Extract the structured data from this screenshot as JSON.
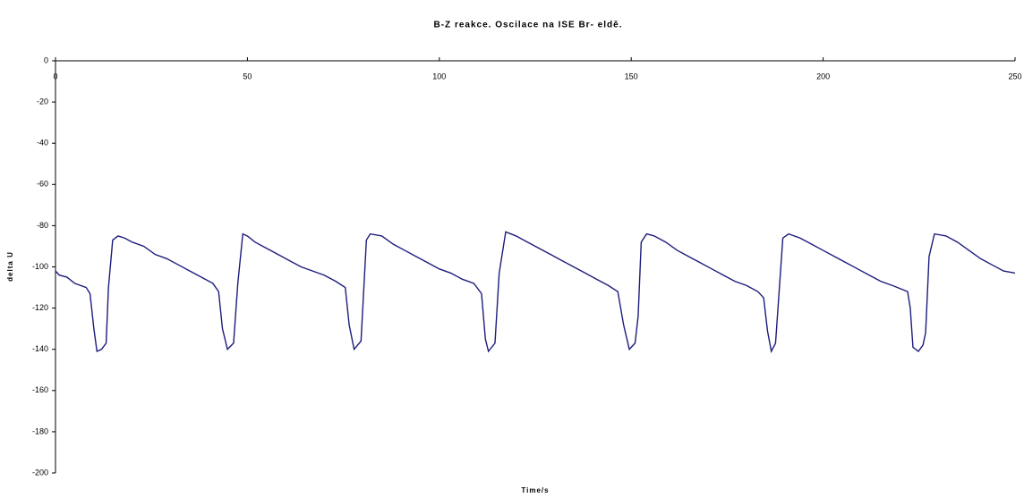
{
  "chart_data": {
    "type": "line",
    "title": "B-Z reakce. Oscilace na ISE Br- eldě.",
    "x_label": "Time/s",
    "y_label": "delta U",
    "xlim": [
      0,
      250
    ],
    "xticks": [
      0,
      50,
      100,
      150,
      200,
      250
    ],
    "ylim": [
      -200,
      0
    ],
    "yticks": [
      0,
      -20,
      -40,
      -60,
      -80,
      -100,
      -120,
      -140,
      -160,
      -180,
      -200
    ],
    "x": [
      0,
      1,
      3,
      5,
      8,
      9,
      10,
      10.8,
      12,
      13.2,
      13.8,
      14.9,
      16.3,
      18,
      20,
      23,
      26,
      29,
      32,
      35,
      38,
      41,
      42.5,
      43.5,
      44.8,
      46.4,
      47.5,
      48.8,
      50,
      52,
      55,
      58,
      61,
      64,
      67,
      70,
      73,
      75.5,
      76.5,
      77.8,
      79.6,
      81,
      82,
      85,
      88,
      91,
      94,
      97,
      100,
      103,
      106,
      109,
      111,
      112,
      112.8,
      114.5,
      115.6,
      117.3,
      120,
      123,
      126,
      129,
      132,
      135,
      138,
      141,
      144,
      146.5,
      148,
      149.5,
      151,
      151.8,
      152.6,
      154,
      156,
      159,
      162,
      165,
      168,
      171,
      174,
      177,
      180,
      183,
      184.5,
      185.5,
      186.5,
      187.6,
      189.5,
      191,
      194,
      197,
      200,
      203,
      206,
      209,
      212,
      215,
      218,
      222,
      222.7,
      223.4,
      224.8,
      226,
      226.7,
      227.6,
      229,
      232,
      235,
      238,
      241,
      244,
      247,
      250
    ],
    "series": [
      {
        "color": "#1c1c7c",
        "values": [
          -102,
          -104,
          -105,
          -108,
          -110,
          -113,
          -130,
          -141,
          -140,
          -137,
          -110,
          -87,
          -85,
          -86,
          -88,
          -90,
          -94,
          -96,
          -99,
          -102,
          -105,
          -108,
          -112,
          -130,
          -140,
          -137,
          -108,
          -84,
          -85,
          -88,
          -91,
          -94,
          -97,
          -100,
          -102,
          -104,
          -107,
          -110,
          -128,
          -140,
          -136,
          -87,
          -84,
          -85,
          -89,
          -92,
          -95,
          -98,
          -101,
          -103,
          -106,
          -108,
          -113,
          -135,
          -141,
          -137,
          -103,
          -83,
          -85,
          -88,
          -91,
          -94,
          -97,
          -100,
          -103,
          -106,
          -109,
          -112,
          -128,
          -140,
          -137,
          -124,
          -88,
          -84,
          -85,
          -88,
          -92,
          -95,
          -98,
          -101,
          -104,
          -107,
          -109,
          -112,
          -115,
          -131,
          -141,
          -137,
          -86,
          -84,
          -86,
          -89,
          -92,
          -95,
          -98,
          -101,
          -104,
          -107,
          -109,
          -112,
          -120,
          -139,
          -141,
          -138,
          -132,
          -95,
          -84,
          -85,
          -88,
          -92,
          -96,
          -99,
          -102,
          -103
        ]
      }
    ]
  }
}
